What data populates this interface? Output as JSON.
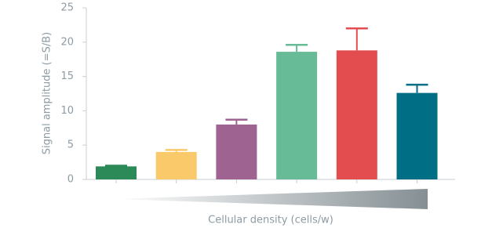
{
  "chart_data": {
    "type": "bar",
    "y_label": "Signal amplitude (=S/B)",
    "x_label": "Cellular density (cells/w)",
    "categories": [
      null,
      null,
      null,
      null,
      null,
      null
    ],
    "values": [
      1.9,
      4.0,
      8.0,
      18.6,
      18.8,
      12.6
    ],
    "errors": [
      0.1,
      0.3,
      0.7,
      1.0,
      3.2,
      1.2
    ],
    "colors": [
      "#2b8a57",
      "#f9c96a",
      "#9e6390",
      "#67bb97",
      "#e34d50",
      "#006f86"
    ],
    "ylim": [
      0,
      25
    ],
    "yticks": [
      0,
      5,
      10,
      15,
      20,
      25
    ],
    "grid": false
  }
}
